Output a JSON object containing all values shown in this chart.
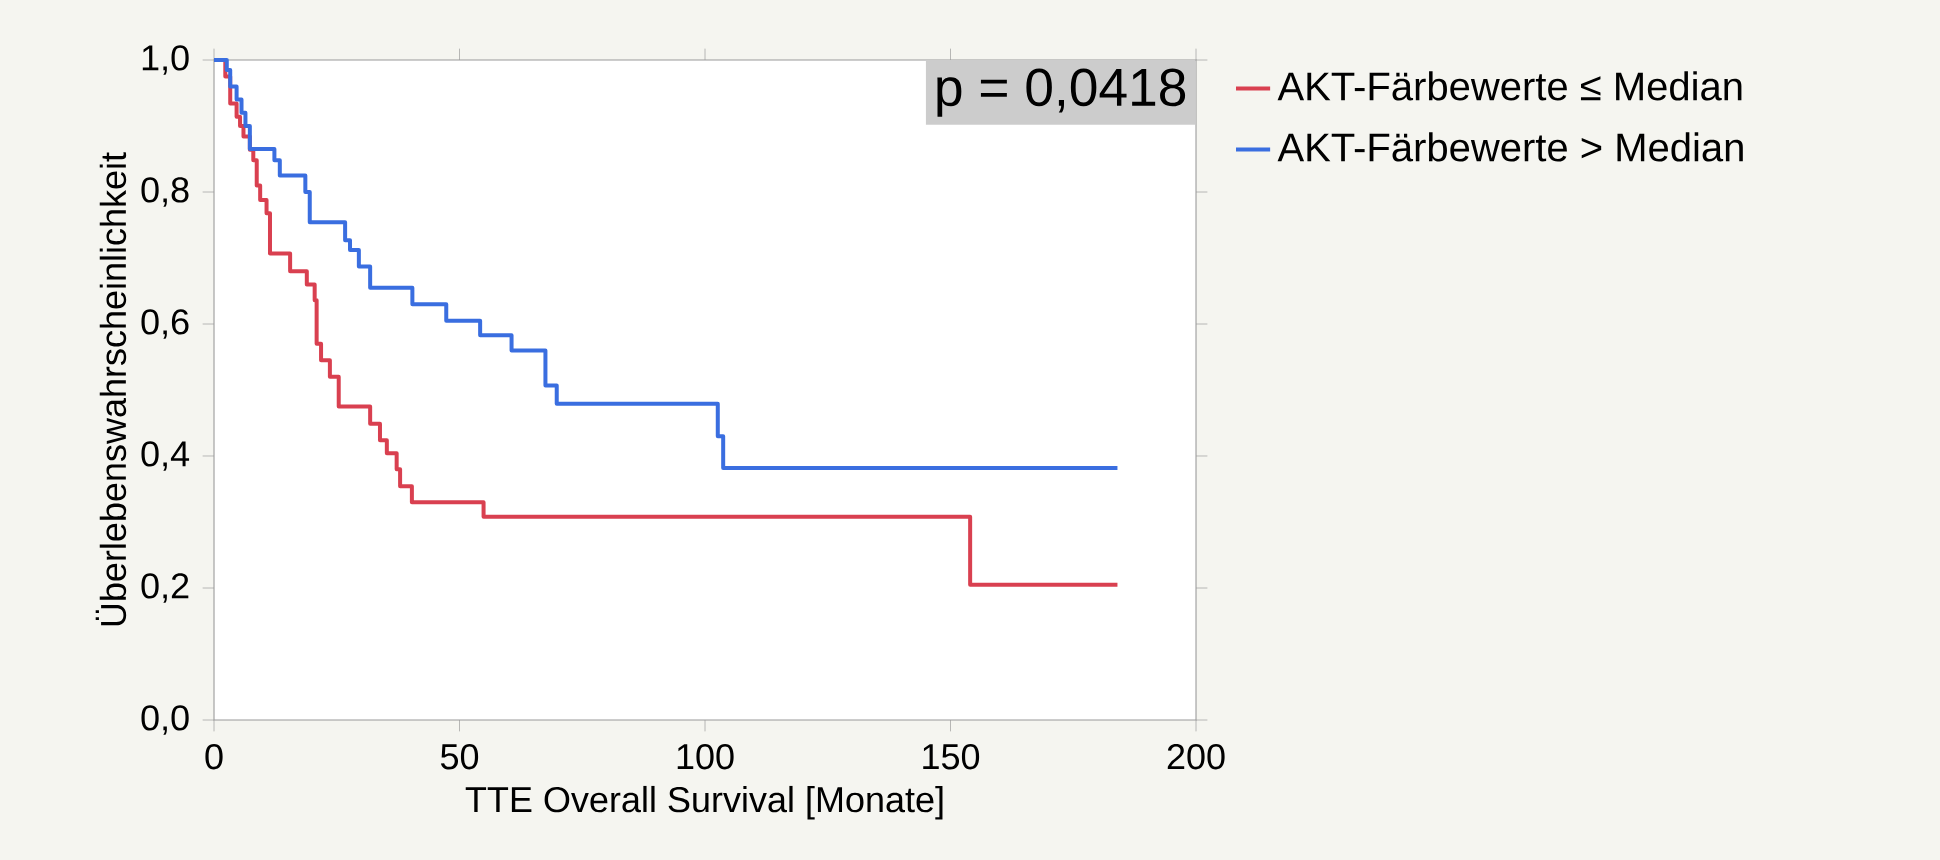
{
  "chart_data": {
    "type": "step",
    "xlabel": "TTE Overall Survival [Monate]",
    "ylabel": "Überlebenswahrscheinlichkeit",
    "annotations": [
      "p = 0,0418"
    ],
    "xlim": [
      0,
      200
    ],
    "ylim": [
      0,
      1
    ],
    "xticks": [
      0,
      50,
      100,
      150,
      200
    ],
    "yticks": [
      {
        "value": 0,
        "label": "0,0"
      },
      {
        "value": 0.2,
        "label": "0,2"
      },
      {
        "value": 0.4,
        "label": "0,4"
      },
      {
        "value": 0.6,
        "label": "0,6"
      },
      {
        "value": 0.8,
        "label": "0,8"
      },
      {
        "value": 1,
        "label": "1,0"
      }
    ],
    "legend": "top right",
    "grid": false,
    "marker": "none",
    "line_style": "solid",
    "series": [
      {
        "name": "AKT-Färbewerte ≤ Median",
        "color": "#d94050",
        "x": [
          0,
          2.3,
          3.3,
          4.6,
          5.3,
          6,
          7.3,
          8,
          8.7,
          9.4,
          10.7,
          11.4,
          15.5,
          18.9,
          20.5,
          20.9,
          21.8,
          23.6,
          25.4,
          31.8,
          33.8,
          35.2,
          37.2,
          37.9,
          40.3,
          54.9,
          154,
          184
        ],
        "values": [
          1,
          0.975,
          0.934,
          0.914,
          0.9,
          0.884,
          0.864,
          0.848,
          0.81,
          0.788,
          0.768,
          0.707,
          0.68,
          0.66,
          0.636,
          0.57,
          0.545,
          0.52,
          0.475,
          0.449,
          0.424,
          0.404,
          0.38,
          0.354,
          0.33,
          0.308,
          0.205,
          0.205
        ]
      },
      {
        "name": "AKT-Färbewerte > Median",
        "color": "#3a6ee0",
        "x": [
          0,
          2.6,
          3.3,
          4.6,
          5.6,
          6.4,
          7.3,
          12.3,
          13.4,
          18.6,
          19.5,
          26.7,
          27.7,
          29.5,
          31.8,
          40.4,
          47.3,
          54.2,
          60.6,
          67.5,
          69.8,
          102.6,
          103.7,
          184
        ],
        "values": [
          1,
          0.985,
          0.96,
          0.94,
          0.92,
          0.9,
          0.865,
          0.848,
          0.825,
          0.8,
          0.754,
          0.727,
          0.712,
          0.687,
          0.655,
          0.63,
          0.605,
          0.583,
          0.56,
          0.507,
          0.479,
          0.43,
          0.382,
          0.382
        ]
      }
    ]
  }
}
